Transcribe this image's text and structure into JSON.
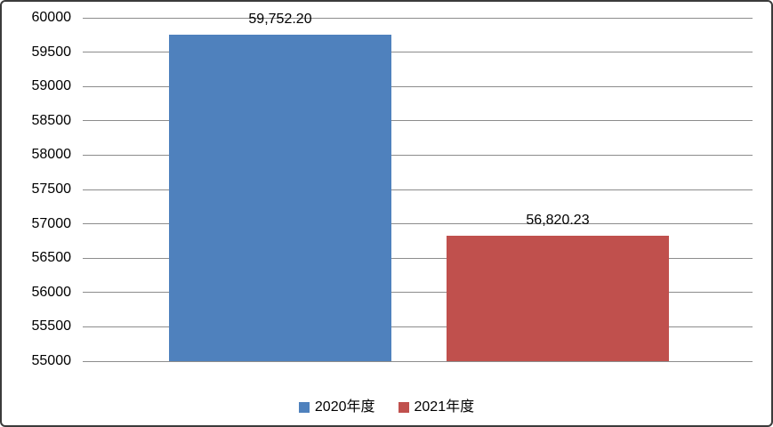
{
  "chart_data": {
    "type": "bar",
    "title": "",
    "xlabel": "",
    "ylabel": "",
    "ylim": [
      55000,
      60000
    ],
    "ytick_interval": 500,
    "yticks": [
      55000,
      55500,
      56000,
      56500,
      57000,
      57500,
      58000,
      58500,
      59000,
      59500,
      60000
    ],
    "grid": true,
    "legend_position": "bottom-center",
    "series": [
      {
        "name": "2020年度",
        "value": 59752.2,
        "data_label": "59,752.20",
        "color": "#4F81BD"
      },
      {
        "name": "2021年度",
        "value": 56820.23,
        "data_label": "56,820.23",
        "color": "#C0504D"
      }
    ]
  },
  "colors": {
    "background": "#FFFFFF",
    "gridline": "#8C8C8C",
    "border": "#3B3B3B",
    "text": "#000000"
  }
}
